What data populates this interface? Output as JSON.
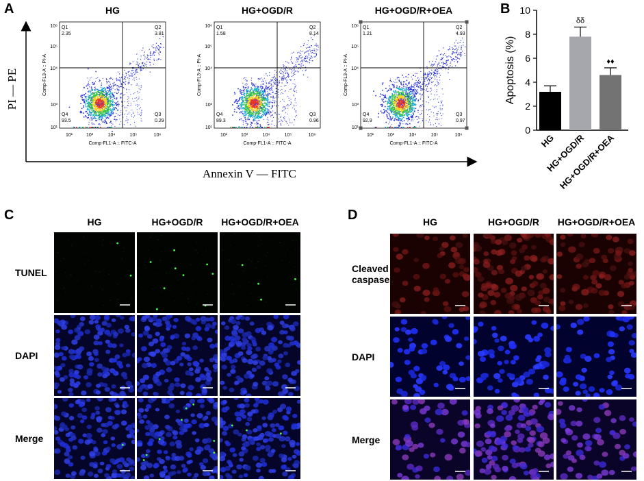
{
  "panels": {
    "a": {
      "letter": "A",
      "y_axis_title": "PI — PE",
      "x_axis_title": "Annexin V — FITC",
      "plot_x_label": "Comp-FL1-A :: FITC-A",
      "plot_y_label": "Comp-FL3-A :: PI-A",
      "tick_labels": [
        "10¹",
        "10³",
        "10⁴",
        "10⁵",
        "10⁶"
      ],
      "ytick_labels": [
        "10¹",
        "10³",
        "10⁴",
        "10⁵",
        "10⁶"
      ],
      "plots": [
        {
          "title": "HG",
          "q1": "Q1",
          "q1v": "2.35",
          "q2": "Q2",
          "q2v": "3.81",
          "q3": "Q3",
          "q3v": "0.29",
          "q4": "Q4",
          "q4v": "93.5"
        },
        {
          "title": "HG+OGD/R",
          "q1": "Q1",
          "q1v": "1.58",
          "q2": "Q2",
          "q2v": "8.14",
          "q3": "Q3",
          "q3v": "0.96",
          "q4": "Q4",
          "q4v": "89.3"
        },
        {
          "title": "HG+OGD/R+OEA",
          "q1": "Q1",
          "q1v": "1.21",
          "q2": "Q2",
          "q2v": "4.93",
          "q3": "Q3",
          "q3v": "0.97",
          "q4": "Q4",
          "q4v": "92.9"
        }
      ]
    },
    "b": {
      "letter": "B"
    },
    "c": {
      "letter": "C",
      "columns": [
        "HG",
        "HG+OGD/R",
        "HG+OGD/R+OEA"
      ],
      "rows": [
        "TUNEL",
        "DAPI",
        "Merge"
      ]
    },
    "d": {
      "letter": "D",
      "columns": [
        "HG",
        "HG+OGD/R",
        "HG+OGD/R+OEA"
      ],
      "rows": [
        "Cleaved\ncaspase3",
        "DAPI",
        "Merge"
      ]
    }
  },
  "chart_data": {
    "type": "bar",
    "categories": [
      "HG",
      "HG+OGD/R",
      "HG+OGD/R+OEA"
    ],
    "values": [
      3.2,
      7.8,
      4.6
    ],
    "errors": [
      0.5,
      0.8,
      0.6
    ],
    "bar_colors": [
      "#000000",
      "#a6a6ad",
      "#737373"
    ],
    "annotations": [
      "",
      "δδ",
      "♦♦"
    ],
    "ylabel": "Apoptosis (%)",
    "ylim": [
      0,
      10
    ],
    "yticks": [
      "0",
      "2",
      "4",
      "6",
      "8",
      "10"
    ],
    "grid": false
  }
}
